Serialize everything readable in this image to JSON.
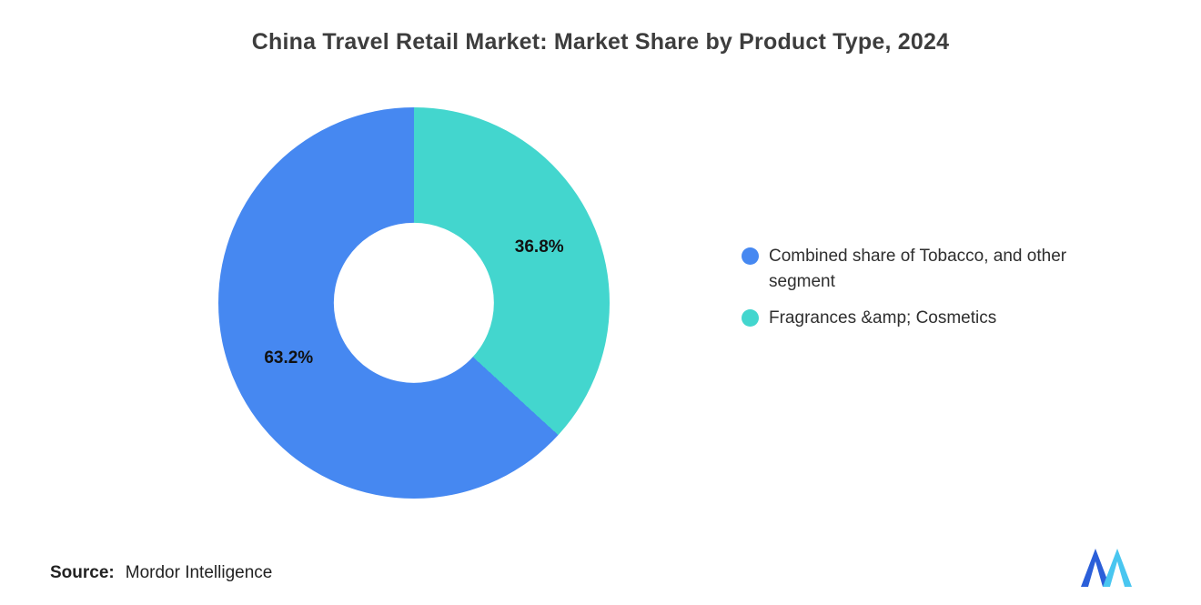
{
  "title": "China Travel Retail Market: Market Share by Product Type, 2024",
  "chart_data": {
    "type": "pie",
    "subtype": "donut",
    "title": "China Travel Retail Market: Market Share by Product Type, 2024",
    "segments": [
      {
        "label": "Combined share of Tobacco, and other segment",
        "value": 63.2,
        "display": "63.2%",
        "color": "#4688F1"
      },
      {
        "label": "Fragrances &amp; Cosmetics",
        "value": 36.8,
        "display": "36.8%",
        "color": "#43D6CE"
      }
    ],
    "start_angle_deg": 132.48,
    "hole_ratio": 0.41,
    "label_radius_ratio": 0.7,
    "label_color": "#111111",
    "legend_position": "right",
    "grid": false
  },
  "legend": {
    "items": [
      {
        "label": "Combined share of Tobacco, and other segment",
        "color": "#4688F1"
      },
      {
        "label": "Fragrances &amp; Cosmetics",
        "color": "#43D6CE"
      }
    ]
  },
  "source": {
    "label": "Source:",
    "text": "Mordor Intelligence"
  },
  "logo": {
    "name": "mordor-intelligence-logo",
    "color_dark": "#2B5FD9",
    "color_light": "#49C6F0"
  }
}
